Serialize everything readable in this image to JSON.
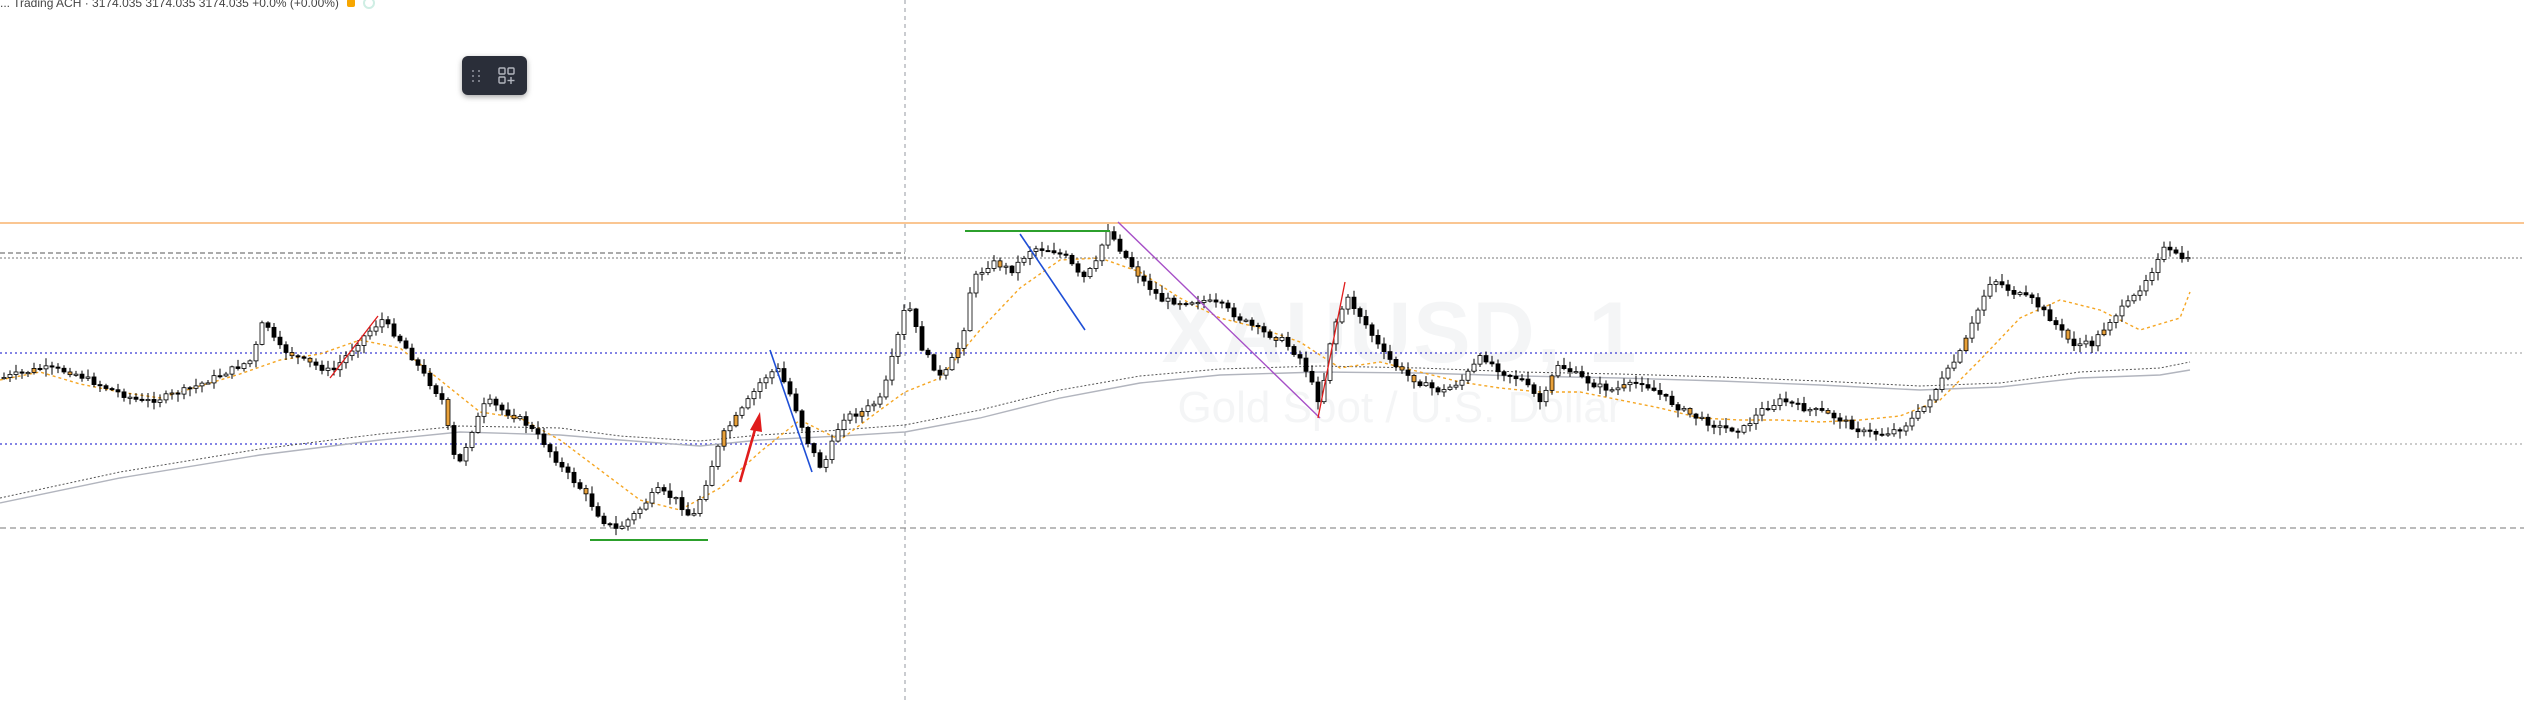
{
  "legend": {
    "text": "... Trading ACH   ·   3174.035  3174.035  3174.035  +0.0% (+0.00%)",
    "dot_color": "#f7a600"
  },
  "watermark": {
    "symbol": "XAUUSD, 1",
    "description": "Gold Spot / U.S. Dollar"
  },
  "toolbar": {
    "drag_icon": "drag-handle-icon",
    "add_icon": "add-widget-icon"
  },
  "colors": {
    "up_body": "#ffffff",
    "down_body": "#000000",
    "highlight_body": "#e8a13a",
    "ema_fast": "#f5a623",
    "ma_slow": "#b2b5be",
    "level_orange": "#f7a350",
    "level_blue": "#3b3bd4",
    "trend_green": "#2ca02c",
    "trend_blue": "#1f4fd6",
    "trend_purple": "#a64fc7",
    "arrow_red": "#e01c1c"
  }
}
